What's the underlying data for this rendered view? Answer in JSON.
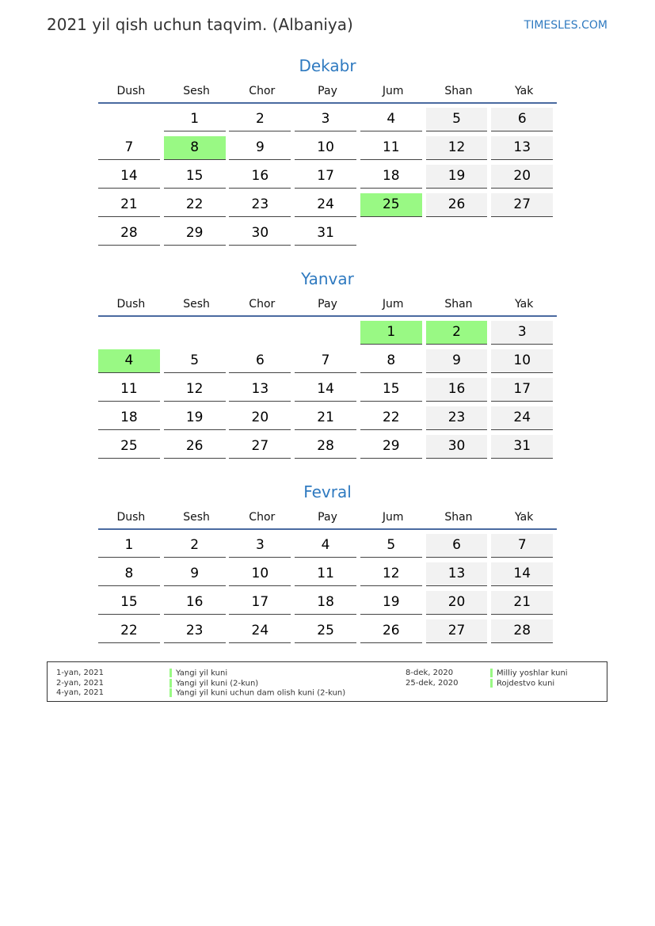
{
  "header": {
    "title": "2021 yil qish uchun taqvim. (Albaniya)",
    "brand": "TIMESLES.COM"
  },
  "colors": {
    "accent": "#2f7ac0",
    "holiday": "#99f984",
    "weekend": "#f2f2f2"
  },
  "weekdays": [
    "Dush",
    "Sesh",
    "Chor",
    "Pay",
    "Jum",
    "Shan",
    "Yak"
  ],
  "months": [
    {
      "name": "Dekabr",
      "weeks": [
        [
          null,
          1,
          2,
          3,
          4,
          5,
          6
        ],
        [
          7,
          8,
          9,
          10,
          11,
          12,
          13
        ],
        [
          14,
          15,
          16,
          17,
          18,
          19,
          20
        ],
        [
          21,
          22,
          23,
          24,
          25,
          26,
          27
        ],
        [
          28,
          29,
          30,
          31,
          null,
          null,
          null
        ]
      ],
      "holidays": [
        8,
        25
      ]
    },
    {
      "name": "Yanvar",
      "weeks": [
        [
          null,
          null,
          null,
          null,
          1,
          2,
          3
        ],
        [
          4,
          5,
          6,
          7,
          8,
          9,
          10
        ],
        [
          11,
          12,
          13,
          14,
          15,
          16,
          17
        ],
        [
          18,
          19,
          20,
          21,
          22,
          23,
          24
        ],
        [
          25,
          26,
          27,
          28,
          29,
          30,
          31
        ]
      ],
      "holidays": [
        1,
        2,
        4
      ]
    },
    {
      "name": "Fevral",
      "weeks": [
        [
          1,
          2,
          3,
          4,
          5,
          6,
          7
        ],
        [
          8,
          9,
          10,
          11,
          12,
          13,
          14
        ],
        [
          15,
          16,
          17,
          18,
          19,
          20,
          21
        ],
        [
          22,
          23,
          24,
          25,
          26,
          27,
          28
        ]
      ],
      "holidays": []
    }
  ],
  "legend": {
    "left": [
      {
        "date": "1-yan, 2021",
        "name": "Yangi yil kuni"
      },
      {
        "date": "2-yan, 2021",
        "name": "Yangi yil kuni (2-kun)"
      },
      {
        "date": "4-yan, 2021",
        "name": "Yangi yil kuni uchun dam olish kuni (2-kun)"
      }
    ],
    "right": [
      {
        "date": "8-dek, 2020",
        "name": "Milliy yoshlar kuni"
      },
      {
        "date": "25-dek, 2020",
        "name": "Rojdestvo kuni"
      }
    ]
  }
}
